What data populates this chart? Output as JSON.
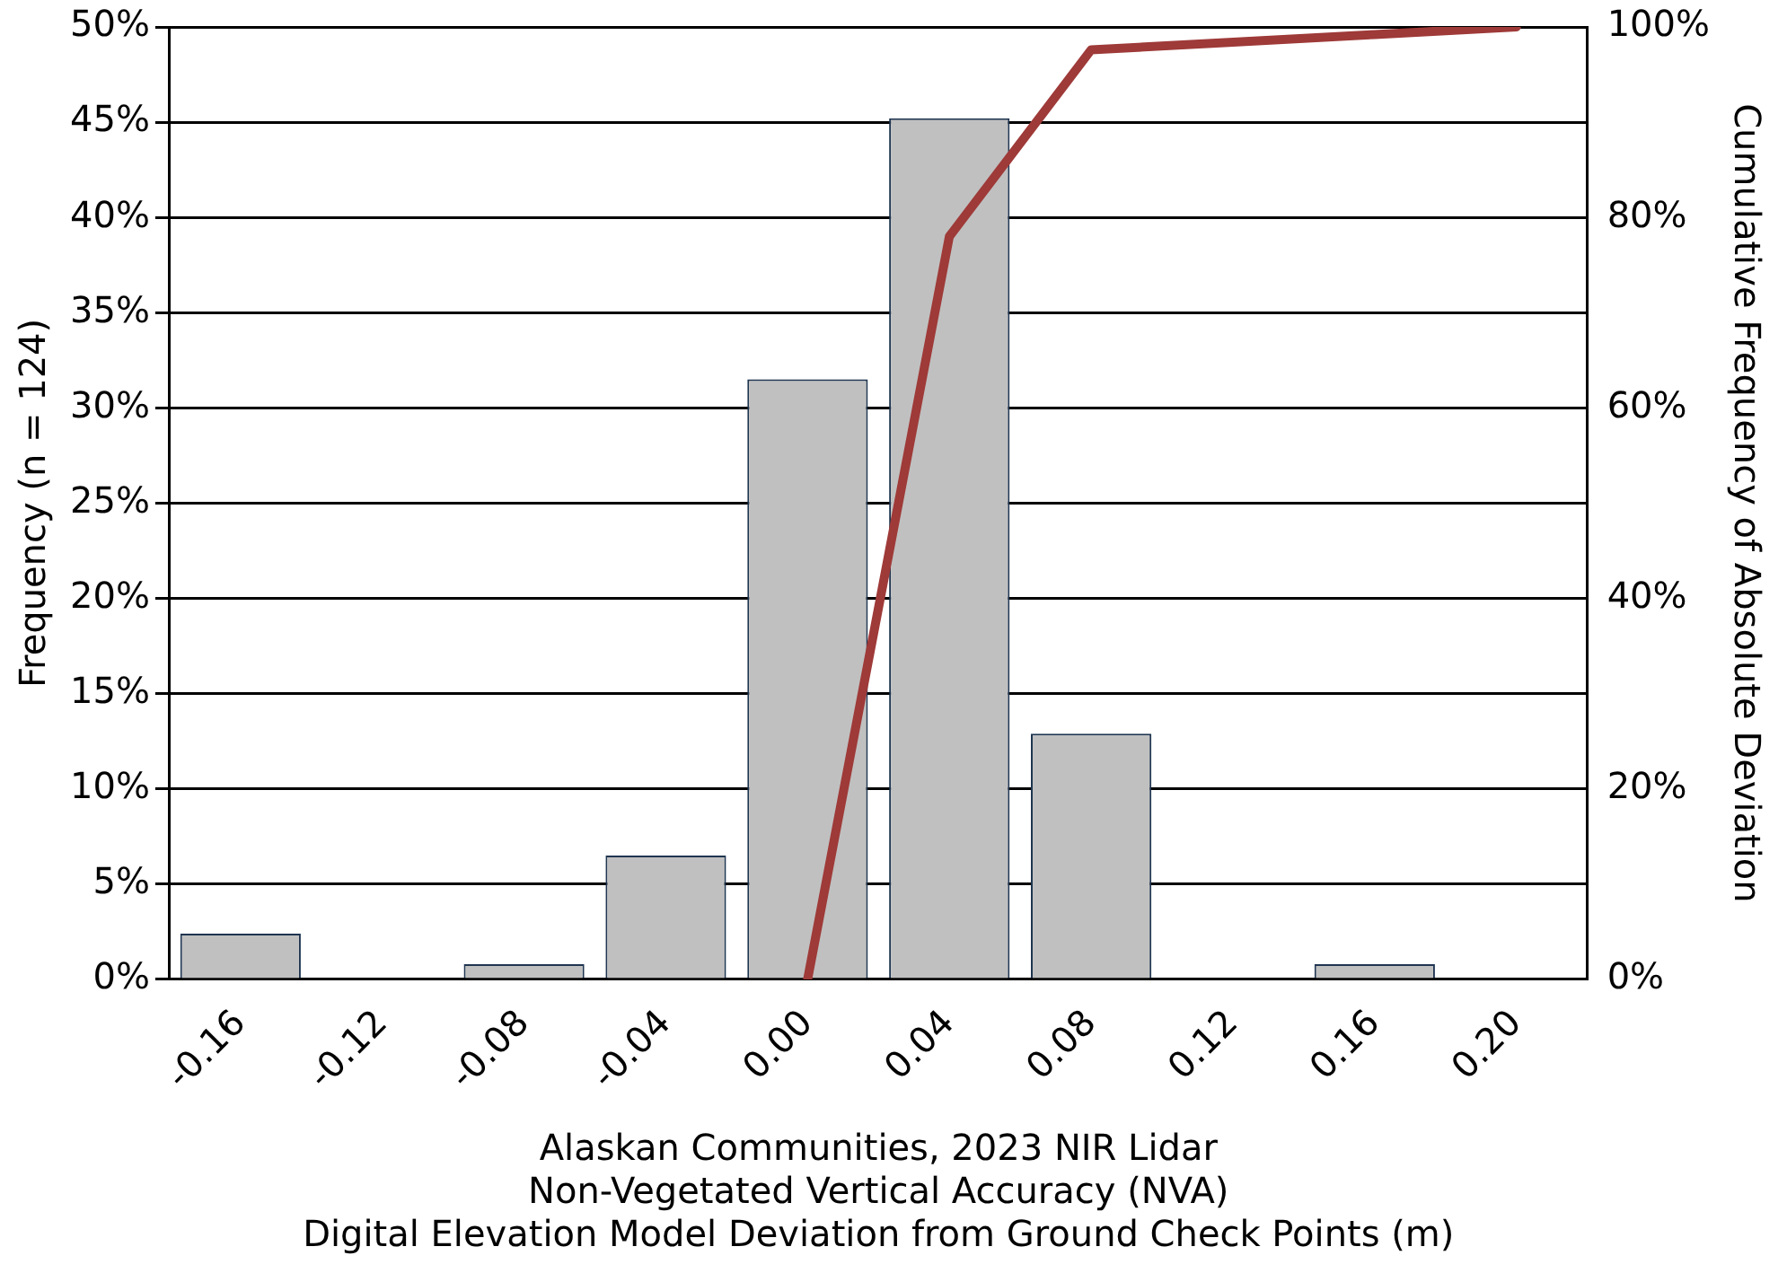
{
  "chart_data": {
    "type": "bar",
    "xlabel": "Alaskan Communities, 2023 NIR Lidar\nNon-Vegetated Vertical Accuracy (NVA)\nDigital Elevation Model Deviation from Ground Check Points (m)",
    "ylabel": "Frequency (n = 124)",
    "y2label": "Cumulative Frequency of Absolute Deviation",
    "categories": [
      "-0.16",
      "-0.12",
      "-0.08",
      "-0.04",
      "0.00",
      "0.04",
      "0.08",
      "0.12",
      "0.16",
      "0.20"
    ],
    "series": [
      {
        "color": "#c0c0c0",
        "values": [
          2.4,
          0,
          0.8,
          6.5,
          31.5,
          45.2,
          12.9,
          0,
          0.8,
          0
        ]
      },
      {
        "type": "line",
        "axis": "y2",
        "color": "#9e3a38",
        "values": [
          null,
          null,
          null,
          null,
          0,
          78,
          97.6,
          98.4,
          99.2,
          100
        ]
      }
    ],
    "ylim": [
      0,
      50
    ],
    "yticks": [
      {
        "value": 0,
        "label": "0%"
      },
      {
        "value": 5,
        "label": "5%"
      },
      {
        "value": 10,
        "label": "10%"
      },
      {
        "value": 15,
        "label": "15%"
      },
      {
        "value": 20,
        "label": "20%"
      },
      {
        "value": 25,
        "label": "25%"
      },
      {
        "value": 30,
        "label": "30%"
      },
      {
        "value": 35,
        "label": "35%"
      },
      {
        "value": 40,
        "label": "40%"
      },
      {
        "value": 45,
        "label": "45%"
      },
      {
        "value": 50,
        "label": "50%"
      }
    ],
    "y2lim": [
      0,
      100
    ],
    "y2ticks": [
      {
        "value": 0,
        "label": "0%"
      },
      {
        "value": 20,
        "label": "20%"
      },
      {
        "value": 40,
        "label": "40%"
      },
      {
        "value": 60,
        "label": "60%"
      },
      {
        "value": 80,
        "label": "80%"
      },
      {
        "value": 100,
        "label": "100%"
      }
    ],
    "grid": "y",
    "legend": false,
    "marker": "none",
    "line_style": "solid"
  }
}
